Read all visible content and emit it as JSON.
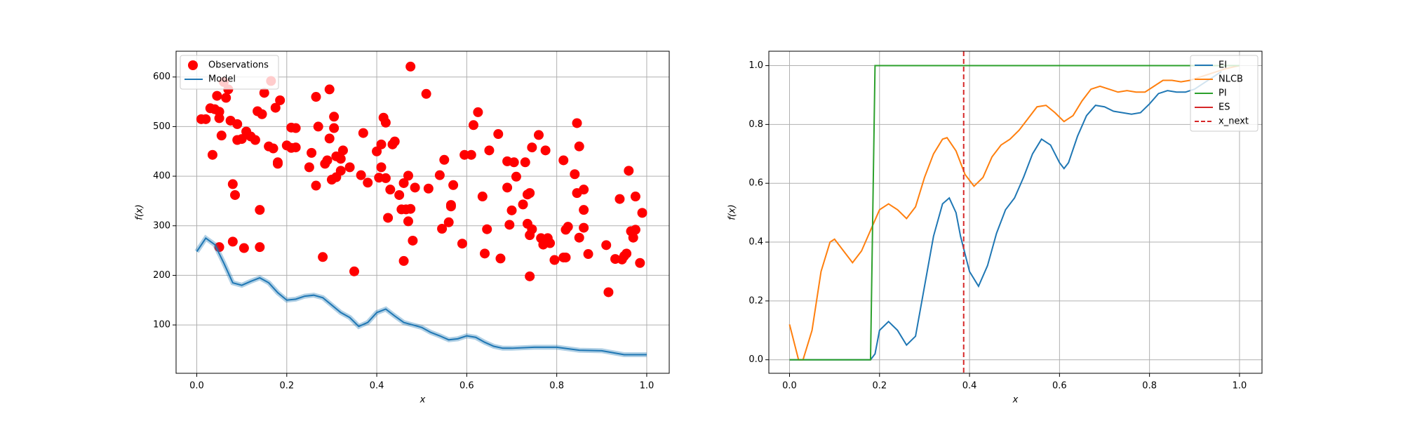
{
  "chart_data": [
    {
      "type": "scatter",
      "xlabel": "x",
      "ylabel": "f(x)",
      "xlim": [
        -0.046,
        1.05
      ],
      "ylim": [
        2.5,
        652
      ],
      "xticks": [
        {
          "value": 0,
          "label": "0.0"
        },
        {
          "value": 0.2,
          "label": "0.2"
        },
        {
          "value": 0.4,
          "label": "0.4"
        },
        {
          "value": 0.6,
          "label": "0.6"
        },
        {
          "value": 0.8,
          "label": "0.8"
        },
        {
          "value": 1,
          "label": "1.0"
        }
      ],
      "yticks": [
        100,
        200,
        300,
        400,
        500,
        600
      ],
      "grid": true,
      "legend": "upper left",
      "series": [
        {
          "name": "Observations",
          "color": "#ff0000",
          "mode": "markers",
          "x": [
            0.01,
            0.02,
            0.03,
            0.035,
            0.04,
            0.045,
            0.05,
            0.05,
            0.05,
            0.055,
            0.06,
            0.065,
            0.07,
            0.075,
            0.08,
            0.08,
            0.085,
            0.09,
            0.09,
            0.1,
            0.105,
            0.11,
            0.12,
            0.13,
            0.135,
            0.14,
            0.14,
            0.145,
            0.15,
            0.16,
            0.165,
            0.17,
            0.175,
            0.18,
            0.18,
            0.185,
            0.2,
            0.21,
            0.21,
            0.22,
            0.22,
            0.25,
            0.255,
            0.265,
            0.265,
            0.27,
            0.28,
            0.285,
            0.29,
            0.295,
            0.295,
            0.3,
            0.305,
            0.305,
            0.31,
            0.31,
            0.32,
            0.32,
            0.325,
            0.34,
            0.35,
            0.365,
            0.37,
            0.38,
            0.4,
            0.405,
            0.41,
            0.41,
            0.415,
            0.42,
            0.42,
            0.425,
            0.43,
            0.435,
            0.44,
            0.45,
            0.455,
            0.46,
            0.46,
            0.465,
            0.47,
            0.47,
            0.475,
            0.475,
            0.48,
            0.485,
            0.51,
            0.515,
            0.54,
            0.545,
            0.55,
            0.56,
            0.565,
            0.57,
            0.565,
            0.59,
            0.595,
            0.61,
            0.615,
            0.625,
            0.635,
            0.64,
            0.645,
            0.65,
            0.67,
            0.675,
            0.69,
            0.69,
            0.695,
            0.7,
            0.705,
            0.71,
            0.725,
            0.73,
            0.735,
            0.735,
            0.74,
            0.74,
            0.74,
            0.745,
            0.745,
            0.76,
            0.765,
            0.77,
            0.775,
            0.78,
            0.785,
            0.795,
            0.815,
            0.815,
            0.82,
            0.82,
            0.825,
            0.84,
            0.845,
            0.845,
            0.85,
            0.85,
            0.86,
            0.86,
            0.86,
            0.87,
            0.91,
            0.915,
            0.93,
            0.94,
            0.945,
            0.95,
            0.955,
            0.96,
            0.965,
            0.97,
            0.975,
            0.975,
            0.985,
            0.99
          ],
          "values": [
            515,
            515,
            537,
            443,
            535,
            562,
            530,
            517,
            257,
            482,
            590,
            558,
            575,
            512,
            384,
            268,
            362,
            473,
            505,
            475,
            255,
            490,
            480,
            473,
            531,
            332,
            257,
            525,
            568,
            460,
            592,
            456,
            538,
            428,
            425,
            553,
            462,
            457,
            498,
            497,
            458,
            418,
            447,
            560,
            381,
            500,
            237,
            425,
            432,
            575,
            476,
            393,
            520,
            497,
            440,
            398,
            435,
            411,
            452,
            418,
            208,
            402,
            487,
            387,
            450,
            397,
            418,
            464,
            518,
            508,
            396,
            316,
            373,
            464,
            470,
            362,
            333,
            386,
            229,
            333,
            401,
            309,
            621,
            334,
            270,
            377,
            566,
            375,
            402,
            294,
            433,
            307,
            342,
            382,
            339,
            264,
            443,
            443,
            503,
            529,
            359,
            244,
            293,
            452,
            485,
            234,
            430,
            377,
            302,
            331,
            428,
            399,
            343,
            428,
            304,
            363,
            366,
            281,
            198,
            293,
            458,
            483,
            275,
            262,
            452,
            275,
            265,
            231,
            432,
            236,
            292,
            236,
            298,
            404,
            507,
            366,
            276,
            460,
            373,
            332,
            296,
            243,
            261,
            166,
            233,
            354,
            232,
            239,
            244,
            411,
            289,
            276,
            359,
            292,
            225,
            326
          ]
        },
        {
          "name": "Model",
          "color": "#1f77b4",
          "mode": "line",
          "x": [
            0,
            0.02,
            0.04,
            0.06,
            0.08,
            0.1,
            0.12,
            0.14,
            0.16,
            0.18,
            0.2,
            0.22,
            0.24,
            0.26,
            0.28,
            0.3,
            0.32,
            0.34,
            0.36,
            0.38,
            0.4,
            0.42,
            0.44,
            0.46,
            0.48,
            0.5,
            0.52,
            0.54,
            0.56,
            0.58,
            0.6,
            0.62,
            0.64,
            0.66,
            0.68,
            0.7,
            0.75,
            0.8,
            0.85,
            0.9,
            0.95,
            1.0
          ],
          "values": [
            248,
            275,
            262,
            225,
            185,
            180,
            188,
            195,
            185,
            165,
            150,
            152,
            158,
            160,
            155,
            140,
            125,
            115,
            97,
            105,
            125,
            132,
            118,
            105,
            100,
            95,
            85,
            78,
            70,
            72,
            78,
            75,
            65,
            57,
            53,
            53,
            55,
            55,
            49,
            48,
            40,
            40
          ]
        }
      ]
    },
    {
      "type": "line",
      "xlabel": "x",
      "ylabel": "f(x)",
      "xlim": [
        -0.046,
        1.05
      ],
      "ylim": [
        -0.046,
        1.049
      ],
      "xticks": [
        {
          "value": 0,
          "label": "0.0"
        },
        {
          "value": 0.2,
          "label": "0.2"
        },
        {
          "value": 0.4,
          "label": "0.4"
        },
        {
          "value": 0.6,
          "label": "0.6"
        },
        {
          "value": 0.8,
          "label": "0.8"
        },
        {
          "value": 1,
          "label": "1.0"
        }
      ],
      "yticks": [
        {
          "value": 0,
          "label": "0.0"
        },
        {
          "value": 0.2,
          "label": "0.2"
        },
        {
          "value": 0.4,
          "label": "0.4"
        },
        {
          "value": 0.6,
          "label": "0.6"
        },
        {
          "value": 0.8,
          "label": "0.8"
        },
        {
          "value": 1,
          "label": "1.0"
        }
      ],
      "grid": true,
      "legend": "upper right",
      "series": [
        {
          "name": "EI",
          "color": "#1f77b4",
          "mode": "line",
          "x": [
            0,
            0.18,
            0.19,
            0.2,
            0.22,
            0.24,
            0.26,
            0.28,
            0.3,
            0.32,
            0.34,
            0.355,
            0.37,
            0.38,
            0.4,
            0.42,
            0.44,
            0.46,
            0.48,
            0.5,
            0.52,
            0.54,
            0.56,
            0.58,
            0.6,
            0.61,
            0.62,
            0.64,
            0.66,
            0.68,
            0.7,
            0.72,
            0.74,
            0.76,
            0.78,
            0.8,
            0.82,
            0.84,
            0.86,
            0.88,
            0.9,
            0.92,
            0.94,
            0.96
          ],
          "values": [
            0,
            0,
            0.02,
            0.1,
            0.13,
            0.1,
            0.05,
            0.08,
            0.25,
            0.42,
            0.53,
            0.55,
            0.5,
            0.42,
            0.3,
            0.25,
            0.32,
            0.43,
            0.51,
            0.55,
            0.62,
            0.7,
            0.75,
            0.73,
            0.67,
            0.65,
            0.67,
            0.76,
            0.83,
            0.865,
            0.86,
            0.845,
            0.84,
            0.835,
            0.84,
            0.87,
            0.905,
            0.915,
            0.91,
            0.91,
            0.92,
            0.94,
            0.96,
            0.98
          ]
        },
        {
          "name": "NLCB",
          "color": "#ff7f0e",
          "mode": "line",
          "x": [
            0,
            0.02,
            0.03,
            0.05,
            0.07,
            0.09,
            0.1,
            0.12,
            0.14,
            0.16,
            0.18,
            0.2,
            0.22,
            0.24,
            0.26,
            0.28,
            0.3,
            0.32,
            0.34,
            0.35,
            0.37,
            0.39,
            0.41,
            0.43,
            0.45,
            0.47,
            0.49,
            0.51,
            0.53,
            0.55,
            0.57,
            0.59,
            0.61,
            0.63,
            0.65,
            0.67,
            0.69,
            0.71,
            0.73,
            0.75,
            0.77,
            0.79,
            0.81,
            0.83,
            0.85,
            0.87,
            0.89,
            0.91,
            0.93,
            0.95,
            0.97,
            1.0
          ],
          "values": [
            0.12,
            0,
            0,
            0.1,
            0.3,
            0.4,
            0.41,
            0.37,
            0.33,
            0.37,
            0.44,
            0.51,
            0.53,
            0.51,
            0.48,
            0.52,
            0.62,
            0.7,
            0.75,
            0.755,
            0.71,
            0.63,
            0.59,
            0.62,
            0.69,
            0.73,
            0.75,
            0.78,
            0.82,
            0.86,
            0.865,
            0.84,
            0.81,
            0.83,
            0.88,
            0.92,
            0.93,
            0.92,
            0.91,
            0.915,
            0.91,
            0.91,
            0.93,
            0.95,
            0.95,
            0.945,
            0.95,
            0.96,
            0.97,
            0.98,
            0.99,
            1.0
          ]
        },
        {
          "name": "PI",
          "color": "#2ca02c",
          "mode": "line",
          "x": [
            0,
            0.18,
            0.183,
            0.19,
            1.0
          ],
          "values": [
            0,
            0,
            0.3,
            1.0,
            1.0
          ]
        },
        {
          "name": "ES",
          "color": "#d62728",
          "mode": "line",
          "x": [],
          "values": []
        }
      ],
      "vlines": [
        {
          "name": "x_next",
          "x": 0.387,
          "color": "#d62728",
          "style": "dashed"
        }
      ]
    }
  ]
}
